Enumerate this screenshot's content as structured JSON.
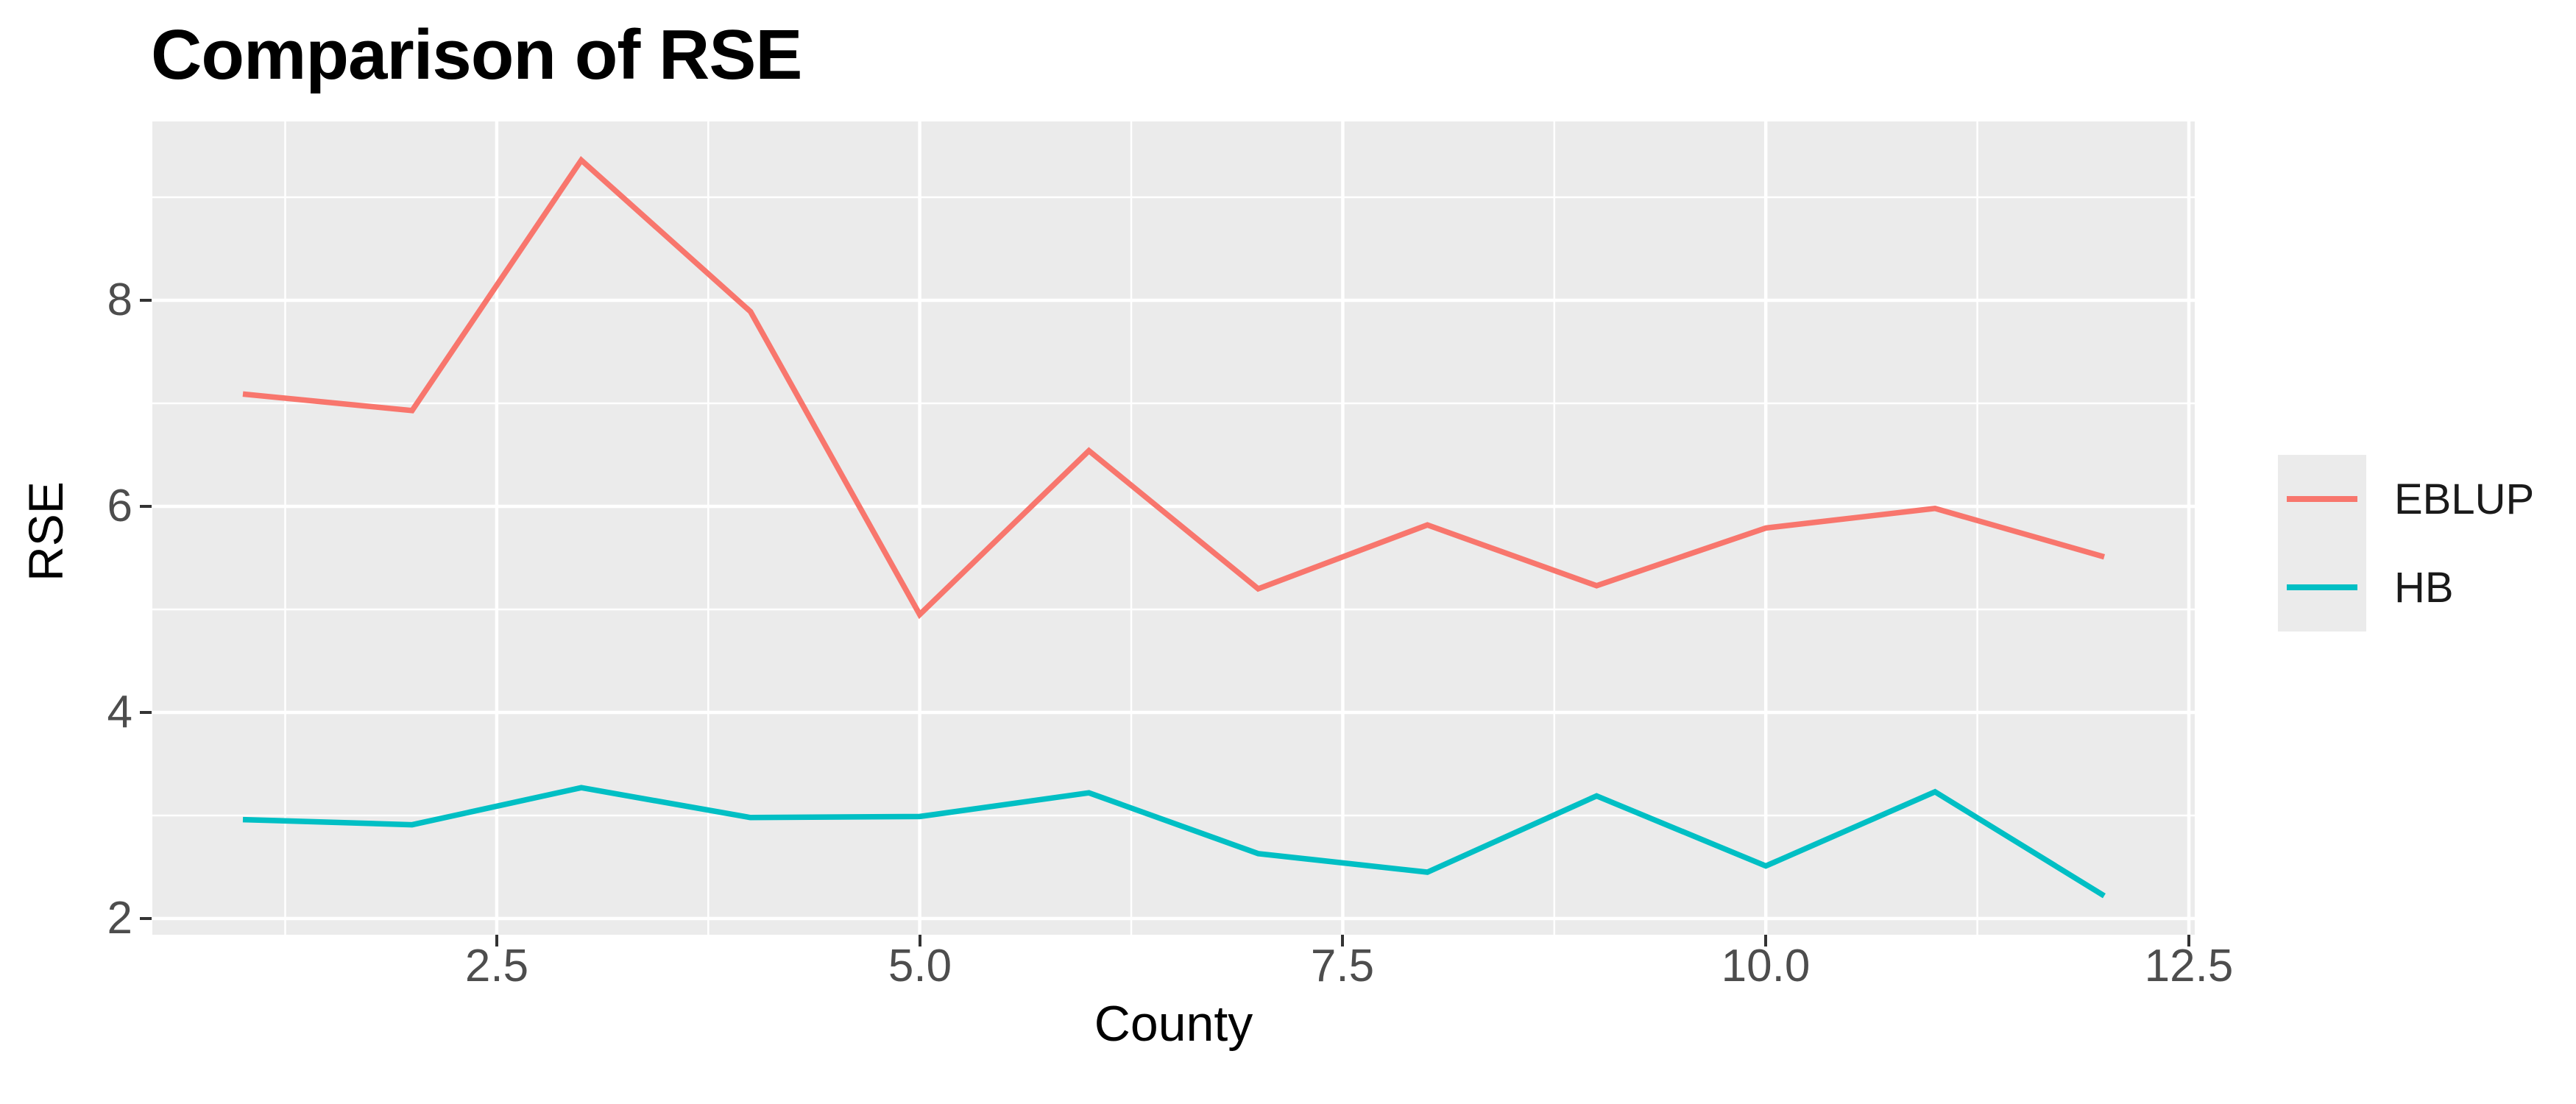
{
  "chart_data": {
    "type": "line",
    "title": "Comparison of RSE",
    "xlabel": "County",
    "ylabel": "RSE",
    "x": [
      1,
      2,
      3,
      4,
      5,
      6,
      7,
      8,
      9,
      10,
      11,
      12
    ],
    "series": [
      {
        "name": "EBLUP",
        "color": "#F8766D",
        "values": [
          7.09,
          6.93,
          9.36,
          7.89,
          4.95,
          6.54,
          5.2,
          5.82,
          5.23,
          5.79,
          5.98,
          5.51
        ]
      },
      {
        "name": "HB",
        "color": "#00BFC4",
        "values": [
          2.96,
          2.91,
          3.27,
          2.98,
          2.99,
          3.22,
          2.63,
          2.45,
          3.19,
          2.51,
          3.23,
          2.22
        ]
      }
    ],
    "xlim": [
      0.465,
      12.535
    ],
    "ylim": [
      1.843,
      9.736
    ],
    "x_ticks": {
      "values": [
        2.5,
        5.0,
        7.5,
        10.0,
        12.5
      ],
      "labels": [
        "2.5",
        "5.0",
        "7.5",
        "10.0",
        "12.5"
      ],
      "minor": [
        1.25,
        3.75,
        6.25,
        8.75,
        11.25
      ]
    },
    "y_ticks": {
      "values": [
        2,
        4,
        6,
        8
      ],
      "labels": [
        "2",
        "4",
        "6",
        "8"
      ],
      "minor": [
        3,
        5,
        7,
        9
      ]
    },
    "grid": "on",
    "legend_position": "right",
    "legend_labels": [
      "EBLUP",
      "HB"
    ],
    "colors": {
      "panel_background": "#EBEBEB",
      "gridline": "#FFFFFF",
      "tick_mark": "#333333",
      "tick_text": "#4d4d4d",
      "title_text": "#000000",
      "axis_title_text": "#000000"
    }
  }
}
